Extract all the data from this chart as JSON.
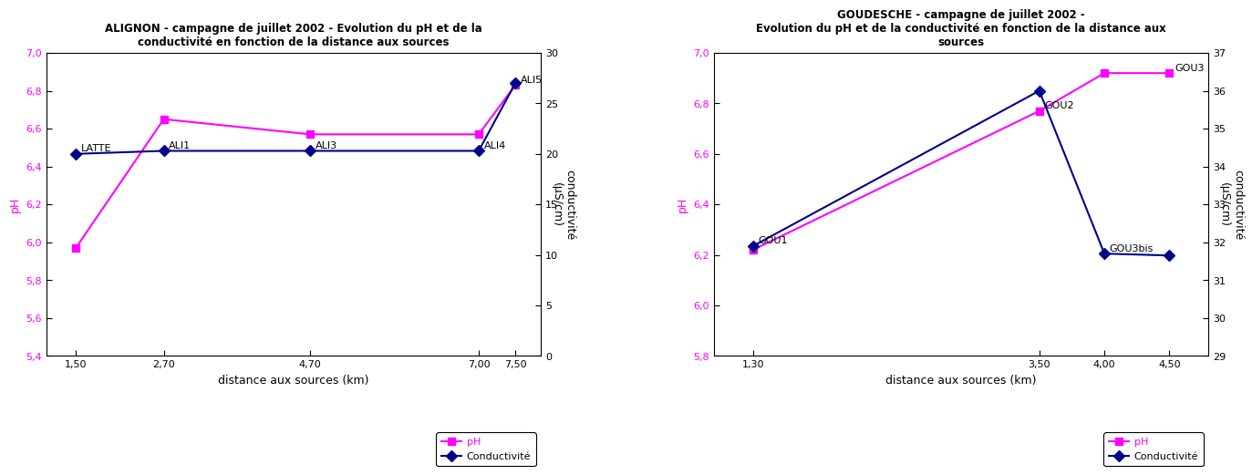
{
  "chart1": {
    "title": "ALIGNON - campagne de juillet 2002 - Evolution du pH et de la\nconductivité en fonction de la distance aux sources",
    "x": [
      1.5,
      2.7,
      4.7,
      7.0,
      7.5
    ],
    "ph": [
      5.97,
      6.65,
      6.57,
      6.57,
      6.83
    ],
    "cond": [
      20.0,
      20.3,
      20.3,
      20.3,
      27.0
    ],
    "labels_ph": [
      "",
      "",
      "",
      "",
      "ALI5"
    ],
    "labels_cond": [
      "LATTE",
      "ALI1",
      "ALI3",
      "ALI4",
      ""
    ],
    "ph_ylim": [
      5.4,
      7.0
    ],
    "ph_yticks": [
      5.4,
      5.6,
      5.8,
      6.0,
      6.2,
      6.4,
      6.6,
      6.8,
      7.0
    ],
    "cond_ylim": [
      0,
      30
    ],
    "cond_yticks": [
      0,
      5,
      10,
      15,
      20,
      25,
      30
    ],
    "xlabel": "distance aux sources (km)",
    "ylabel_left": "pH",
    "ylabel_right": "conductivité\n(µS/cm)",
    "xtick_labels": [
      "1,50",
      "2,70",
      "4,70",
      "7,00",
      "7,50"
    ],
    "xticks": [
      1.5,
      2.7,
      4.7,
      7.0,
      7.5
    ],
    "xlim": [
      1.1,
      7.85
    ]
  },
  "chart2": {
    "title": "GOUDESCHE - campagne de juillet 2002 -\nEvolution du pH et de la conductivité en fonction de la distance aux\nsources",
    "x": [
      1.3,
      3.5,
      4.0,
      4.5
    ],
    "ph": [
      6.22,
      6.77,
      6.92,
      6.92
    ],
    "cond": [
      31.9,
      36.0,
      31.7,
      31.65
    ],
    "labels_ph": [
      "",
      "GOU2",
      "",
      "GOU3"
    ],
    "labels_cond": [
      "GOU1",
      "",
      "GOU3bis",
      ""
    ],
    "ph_ylim": [
      5.8,
      7.0
    ],
    "ph_yticks": [
      5.8,
      6.0,
      6.2,
      6.4,
      6.6,
      6.8,
      7.0
    ],
    "cond_ylim": [
      29,
      37
    ],
    "cond_yticks": [
      29,
      30,
      31,
      32,
      33,
      34,
      35,
      36,
      37
    ],
    "xlabel": "distance aux sources (km)",
    "ylabel_left": "pH",
    "ylabel_right": "conductivité\n(µS/cm)",
    "xtick_labels": [
      "1,30",
      "3,50",
      "4,00",
      "4,50"
    ],
    "xticks": [
      1.3,
      3.5,
      4.0,
      4.5
    ],
    "xlim": [
      1.0,
      4.8
    ]
  },
  "ph_color": "#FF00FF",
  "cond_color": "#00008B",
  "marker_ph": "s",
  "marker_cond": "D",
  "marker_size": 6,
  "line_width": 1.5,
  "bg_color": "#FFFFFF",
  "label_fontsize": 8,
  "tick_fontsize": 8,
  "title_fontsize": 8.5,
  "axis_label_fontsize": 9
}
